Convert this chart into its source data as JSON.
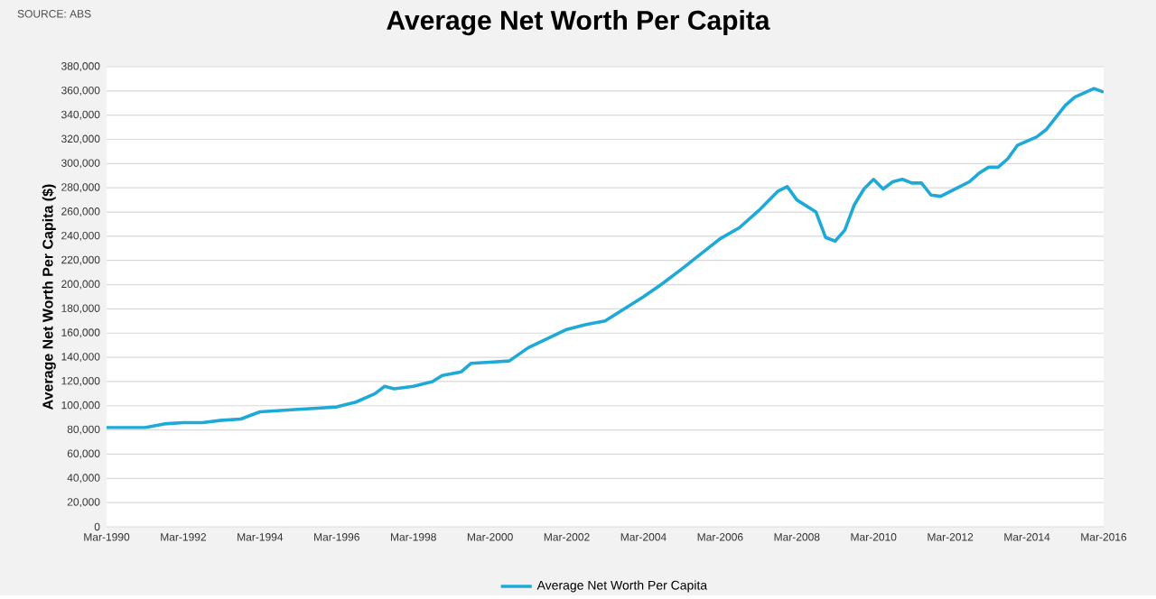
{
  "chart_data": {
    "type": "line",
    "title": "Average Net Worth Per Capita",
    "ylabel": "Average Net Worth Per Capita ($)",
    "annotations": [
      "SOURCE: ABS"
    ],
    "x": [
      "1990-03",
      "1991-03",
      "1991-09",
      "1992-03",
      "1992-09",
      "1993-03",
      "1993-09",
      "1994-03",
      "1995-03",
      "1995-09",
      "1996-03",
      "1996-09",
      "1997-03",
      "1997-06",
      "1997-09",
      "1998-03",
      "1998-09",
      "1998-12",
      "1999-06",
      "1999-09",
      "2000-03",
      "2000-09",
      "2001-03",
      "2002-03",
      "2002-09",
      "2003-03",
      "2004-03",
      "2004-09",
      "2005-03",
      "2006-03",
      "2006-09",
      "2007-03",
      "2007-09",
      "2007-12",
      "2008-03",
      "2008-09",
      "2008-12",
      "2009-03",
      "2009-06",
      "2009-09",
      "2009-12",
      "2010-03",
      "2010-06",
      "2010-09",
      "2010-12",
      "2011-03",
      "2011-06",
      "2011-09",
      "2011-12",
      "2012-06",
      "2012-09",
      "2012-12",
      "2013-03",
      "2013-06",
      "2013-09",
      "2013-12",
      "2014-06",
      "2014-09",
      "2015-03",
      "2015-06",
      "2015-12",
      "2016-03"
    ],
    "series": [
      {
        "name": "Average Net Worth Per Capita",
        "color": "#1fa9d6",
        "values": [
          82000,
          82000,
          85000,
          86000,
          86000,
          88000,
          89000,
          95000,
          97000,
          98000,
          99000,
          103000,
          110000,
          116000,
          114000,
          116000,
          120000,
          125000,
          128000,
          135000,
          136000,
          137000,
          148000,
          163000,
          167000,
          170000,
          190000,
          201000,
          213000,
          238000,
          247000,
          261000,
          277000,
          281000,
          270000,
          260000,
          239000,
          236000,
          245000,
          266000,
          279000,
          287000,
          279000,
          285000,
          287000,
          284000,
          284000,
          274000,
          273000,
          281000,
          285000,
          292000,
          297000,
          297000,
          304000,
          315000,
          322000,
          328000,
          348000,
          355000,
          362000,
          359000
        ]
      }
    ],
    "xlim": [
      "1990-03",
      "2016-03"
    ],
    "xticks": [
      {
        "value": "1990-03",
        "label": "Mar-1990"
      },
      {
        "value": "1992-03",
        "label": "Mar-1992"
      },
      {
        "value": "1994-03",
        "label": "Mar-1994"
      },
      {
        "value": "1996-03",
        "label": "Mar-1996"
      },
      {
        "value": "1998-03",
        "label": "Mar-1998"
      },
      {
        "value": "2000-03",
        "label": "Mar-2000"
      },
      {
        "value": "2002-03",
        "label": "Mar-2002"
      },
      {
        "value": "2004-03",
        "label": "Mar-2004"
      },
      {
        "value": "2006-03",
        "label": "Mar-2006"
      },
      {
        "value": "2008-03",
        "label": "Mar-2008"
      },
      {
        "value": "2010-03",
        "label": "Mar-2010"
      },
      {
        "value": "2012-03",
        "label": "Mar-2012"
      },
      {
        "value": "2014-03",
        "label": "Mar-2014"
      },
      {
        "value": "2016-03",
        "label": "Mar-2016"
      }
    ],
    "ylim": [
      0,
      380000
    ],
    "yticks": [
      {
        "value": 0,
        "label": "0"
      },
      {
        "value": 20000,
        "label": "20,000"
      },
      {
        "value": 40000,
        "label": "40,000"
      },
      {
        "value": 60000,
        "label": "60,000"
      },
      {
        "value": 80000,
        "label": "80,000"
      },
      {
        "value": 100000,
        "label": "100,000"
      },
      {
        "value": 120000,
        "label": "120,000"
      },
      {
        "value": 140000,
        "label": "140,000"
      },
      {
        "value": 160000,
        "label": "160,000"
      },
      {
        "value": 180000,
        "label": "180,000"
      },
      {
        "value": 200000,
        "label": "200,000"
      },
      {
        "value": 220000,
        "label": "220,000"
      },
      {
        "value": 240000,
        "label": "240,000"
      },
      {
        "value": 260000,
        "label": "260,000"
      },
      {
        "value": 280000,
        "label": "280,000"
      },
      {
        "value": 300000,
        "label": "300,000"
      },
      {
        "value": 320000,
        "label": "320,000"
      },
      {
        "value": 340000,
        "label": "340,000"
      },
      {
        "value": 360000,
        "label": "360,000"
      },
      {
        "value": 380000,
        "label": "380,000"
      }
    ],
    "grid": "y",
    "legend": "bottom",
    "marker": "none",
    "line_style": "solid"
  }
}
